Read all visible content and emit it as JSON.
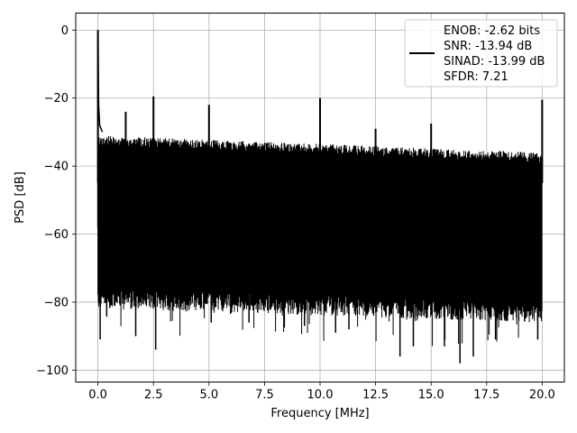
{
  "chart_data": {
    "type": "line",
    "xlabel": "Frequency [MHz]",
    "ylabel": "PSD [dB]",
    "xlim": [
      -1.0,
      21.0
    ],
    "ylim": [
      -103.5,
      5.0
    ],
    "xticks": [
      0.0,
      2.5,
      5.0,
      7.5,
      10.0,
      12.5,
      15.0,
      17.5,
      20.0
    ],
    "xtick_labels": [
      "0.0",
      "2.5",
      "5.0",
      "7.5",
      "10.0",
      "12.5",
      "15.0",
      "17.5",
      "20.0"
    ],
    "yticks": [
      0,
      -20,
      -40,
      -60,
      -80,
      -100
    ],
    "ytick_labels": [
      "0",
      "−20",
      "−40",
      "−60",
      "−80",
      "−100"
    ],
    "grid": true,
    "line_color": "#000000",
    "legend": {
      "placement": "top-right",
      "entries": [
        "ENOB: -2.62 bits",
        "SNR: -13.94 dB",
        "SINAD: -13.99 dB",
        "SFDR: 7.21"
      ]
    },
    "noise_floor": {
      "x_range": [
        0.0,
        20.0
      ],
      "upper_db": [
        -31,
        -36
      ],
      "lower_db": [
        -76,
        -80
      ],
      "min_db": -98
    },
    "spurs": [
      {
        "x": 0.0,
        "y": 0
      },
      {
        "x": 1.25,
        "y": -24
      },
      {
        "x": 2.5,
        "y": -19.5
      },
      {
        "x": 5.0,
        "y": -22
      },
      {
        "x": 10.0,
        "y": -20
      },
      {
        "x": 12.5,
        "y": -29
      },
      {
        "x": 15.0,
        "y": -27.5
      },
      {
        "x": 20.0,
        "y": -20.5
      }
    ],
    "deep_dips": [
      {
        "x": 0.1,
        "y": -91
      },
      {
        "x": 1.7,
        "y": -90
      },
      {
        "x": 2.6,
        "y": -94
      },
      {
        "x": 5.1,
        "y": -86
      },
      {
        "x": 6.8,
        "y": -86
      },
      {
        "x": 9.3,
        "y": -87
      },
      {
        "x": 10.7,
        "y": -89
      },
      {
        "x": 11.3,
        "y": -88
      },
      {
        "x": 13.6,
        "y": -96
      },
      {
        "x": 14.2,
        "y": -93
      },
      {
        "x": 15.6,
        "y": -93
      },
      {
        "x": 16.3,
        "y": -98
      },
      {
        "x": 16.9,
        "y": -96
      },
      {
        "x": 17.9,
        "y": -91
      },
      {
        "x": 19.8,
        "y": -91
      }
    ]
  }
}
